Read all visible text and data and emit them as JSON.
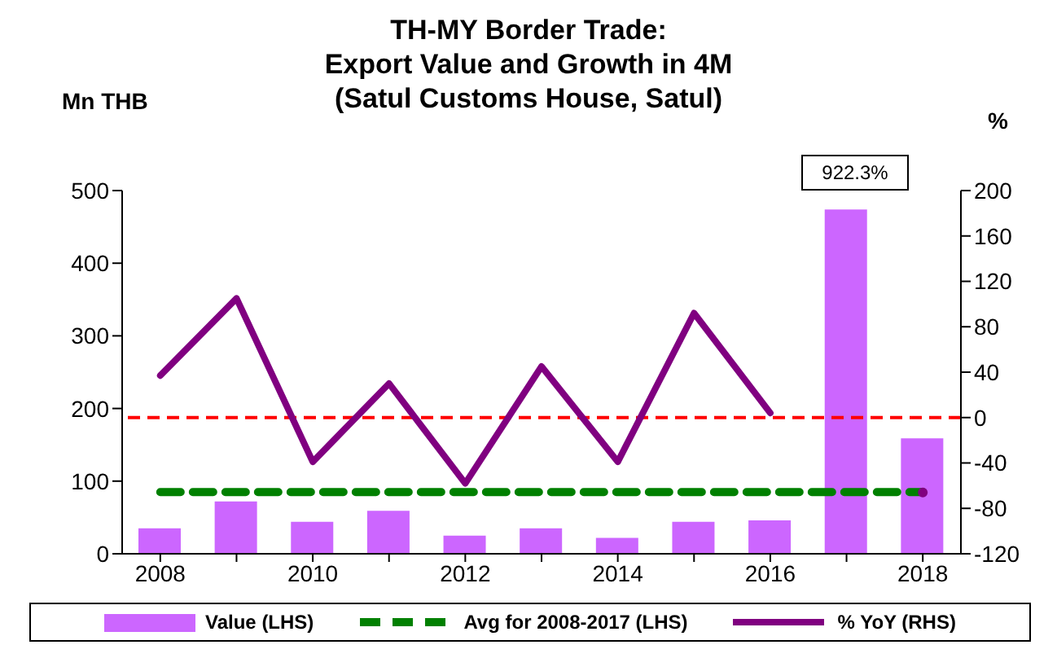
{
  "chart_data": {
    "type": "bar",
    "title": "TH-MY Border Trade:\nExport Value and Growth in 4M\n(Satul Customs House, Satul)",
    "ylabel": "Mn THB",
    "y2label": "%",
    "categories": [
      "2008",
      null,
      "2010",
      null,
      "2012",
      null,
      "2014",
      null,
      "2016",
      null,
      "2018"
    ],
    "series": [
      {
        "name": "Value (LHS)",
        "color": "#cc66ff",
        "values": [
          35,
          72,
          44,
          59,
          25,
          35,
          22,
          44,
          46,
          474,
          159
        ]
      },
      {
        "name": "Avg for 2008-2017 (LHS)",
        "type": "line",
        "line_style": "dashed",
        "color": "#008000",
        "values": [
          85,
          85,
          85,
          85,
          85,
          85,
          85,
          85,
          85,
          85,
          85
        ]
      },
      {
        "name": "% YoY (RHS)",
        "type": "line",
        "axis": "y2",
        "line_style": "solid",
        "color": "#800080",
        "values": [
          37,
          105,
          -39,
          30,
          -58,
          45,
          -39,
          92,
          4,
          null,
          -66
        ]
      }
    ],
    "ylim": [
      0,
      500
    ],
    "yticks": [
      0,
      100,
      200,
      300,
      400,
      500
    ],
    "y2lim": [
      -120,
      200
    ],
    "y2ticks": [
      -120,
      -80,
      -40,
      0,
      40,
      80,
      120,
      160,
      200
    ],
    "ref_lines": [
      {
        "axis": "y2",
        "value": 0,
        "color": "#ff0000",
        "line_style": "dashed"
      }
    ],
    "annotations": [
      "922.3%"
    ],
    "legend": "bottom",
    "marker": "none"
  }
}
